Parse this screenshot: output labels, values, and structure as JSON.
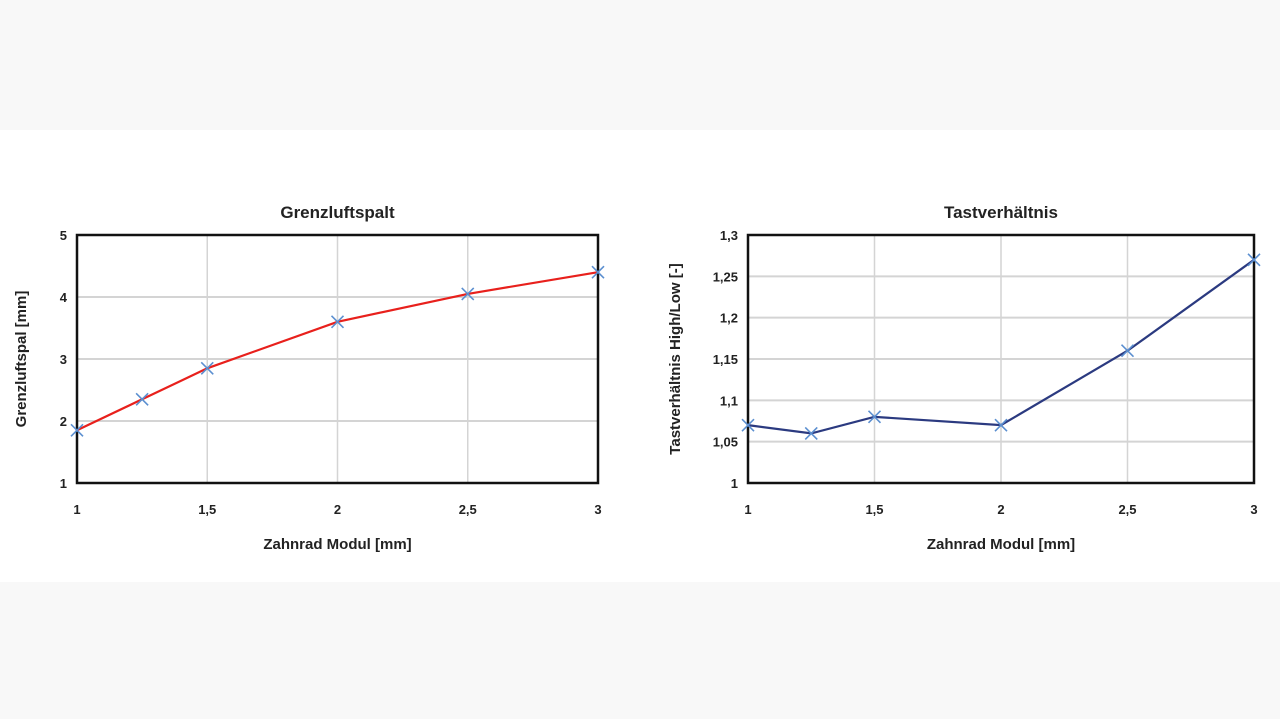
{
  "chart_data": [
    {
      "type": "line",
      "title": "Grenzluftspalt",
      "xlabel": "Zahnrad Modul [mm]",
      "ylabel": "Grenzluftspal [mm]",
      "x": [
        1,
        1.25,
        1.5,
        2,
        2.5,
        3
      ],
      "series": [
        {
          "name": "Grenzluftspalt",
          "values": [
            1.85,
            2.35,
            2.85,
            3.6,
            4.05,
            4.4
          ],
          "color": "#e8201c",
          "marker_color": "#5b8fd0"
        }
      ],
      "xlim": [
        1,
        3
      ],
      "ylim": [
        1,
        5
      ],
      "xticks": [
        1,
        1.5,
        2,
        2.5,
        3
      ],
      "xtick_labels": [
        "1",
        "1,5",
        "2",
        "2,5",
        "3"
      ],
      "yticks": [
        1,
        2,
        3,
        4,
        5
      ],
      "ytick_labels": [
        "1",
        "2",
        "3",
        "4",
        "5"
      ],
      "grid": true
    },
    {
      "type": "line",
      "title": "Tastverhältnis",
      "xlabel": "Zahnrad Modul [mm]",
      "ylabel": "Tastverhältnis High/Low [-]",
      "x": [
        1,
        1.25,
        1.5,
        2,
        2.5,
        3
      ],
      "series": [
        {
          "name": "Tastverhältnis",
          "values": [
            1.07,
            1.06,
            1.08,
            1.07,
            1.16,
            1.27
          ],
          "color": "#2b3a80",
          "marker_color": "#5b8fd0"
        }
      ],
      "xlim": [
        1,
        3
      ],
      "ylim": [
        1,
        1.3
      ],
      "xticks": [
        1,
        1.5,
        2,
        2.5,
        3
      ],
      "xtick_labels": [
        "1",
        "1,5",
        "2",
        "2,5",
        "3"
      ],
      "yticks": [
        1,
        1.05,
        1.1,
        1.15,
        1.2,
        1.25,
        1.3
      ],
      "ytick_labels": [
        "1",
        "1,05",
        "1,1",
        "1,15",
        "1,2",
        "1,25",
        "1,3"
      ],
      "grid": true
    }
  ]
}
